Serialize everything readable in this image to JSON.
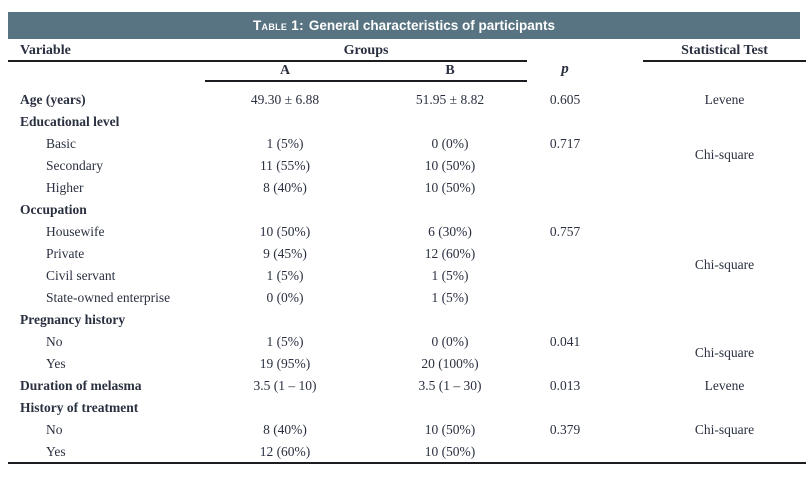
{
  "title": {
    "prefix": "Table 1:",
    "text": "General characteristics of participants"
  },
  "colors": {
    "title_bar_bg": "#587381",
    "title_text": "#ffffff",
    "ink": "#2a3040",
    "rule": "#1c1d21"
  },
  "columns": {
    "variable": "Variable",
    "groups": "Groups",
    "group_a": "A",
    "group_b": "B",
    "p": "p",
    "stat_test": "Statistical Test"
  },
  "table": {
    "rows": [
      {
        "label": "Age (years)",
        "bold": true,
        "indent": false,
        "a": "49.30 ± 6.88",
        "b": "51.95 ± 8.82",
        "p": "0.605",
        "test": "Levene",
        "test_straddle": false
      },
      {
        "label": "Educational level",
        "bold": true,
        "indent": false,
        "a": "",
        "b": "",
        "p": "",
        "test": "",
        "test_straddle": false
      },
      {
        "label": "Basic",
        "bold": false,
        "indent": true,
        "a": "1 (5%)",
        "b": "0 (0%)",
        "p": "0.717",
        "test": "Chi-square",
        "test_straddle": true
      },
      {
        "label": "Secondary",
        "bold": false,
        "indent": true,
        "a": "11 (55%)",
        "b": "10 (50%)",
        "p": "",
        "test": "",
        "test_straddle": false
      },
      {
        "label": "Higher",
        "bold": false,
        "indent": true,
        "a": "8 (40%)",
        "b": "10 (50%)",
        "p": "",
        "test": "",
        "test_straddle": false
      },
      {
        "label": "Occupation",
        "bold": true,
        "indent": false,
        "a": "",
        "b": "",
        "p": "",
        "test": "",
        "test_straddle": false
      },
      {
        "label": "Housewife",
        "bold": false,
        "indent": true,
        "a": "10 (50%)",
        "b": "6 (30%)",
        "p": "0.757",
        "test": "",
        "test_straddle": false
      },
      {
        "label": "Private",
        "bold": false,
        "indent": true,
        "a": "9 (45%)",
        "b": "12 (60%)",
        "p": "",
        "test": "Chi-square",
        "test_straddle": true
      },
      {
        "label": "Civil servant",
        "bold": false,
        "indent": true,
        "a": "1 (5%)",
        "b": "1 (5%)",
        "p": "",
        "test": "",
        "test_straddle": false
      },
      {
        "label": "State-owned enterprise",
        "bold": false,
        "indent": true,
        "a": "0 (0%)",
        "b": "1 (5%)",
        "p": "",
        "test": "",
        "test_straddle": false
      },
      {
        "label": "Pregnancy history",
        "bold": true,
        "indent": false,
        "a": "",
        "b": "",
        "p": "",
        "test": "",
        "test_straddle": false
      },
      {
        "label": "No",
        "bold": false,
        "indent": true,
        "a": "1 (5%)",
        "b": "0 (0%)",
        "p": "0.041",
        "test": "Chi-square",
        "test_straddle": true
      },
      {
        "label": "Yes",
        "bold": false,
        "indent": true,
        "a": "19 (95%)",
        "b": "20 (100%)",
        "p": "",
        "test": "",
        "test_straddle": false
      },
      {
        "label": "Duration of melasma",
        "bold": true,
        "indent": false,
        "a": "3.5 (1 – 10)",
        "b": "3.5 (1 – 30)",
        "p": "0.013",
        "test": "Levene",
        "test_straddle": false
      },
      {
        "label": "History of treatment",
        "bold": true,
        "indent": false,
        "a": "",
        "b": "",
        "p": "",
        "test": "",
        "test_straddle": false
      },
      {
        "label": "No",
        "bold": false,
        "indent": true,
        "a": "8 (40%)",
        "b": "10 (50%)",
        "p": "0.379",
        "test": "Chi-square",
        "test_straddle": false
      },
      {
        "label": "Yes",
        "bold": false,
        "indent": true,
        "a": "12 (60%)",
        "b": "10 (50%)",
        "p": "",
        "test": "",
        "test_straddle": false
      }
    ]
  }
}
